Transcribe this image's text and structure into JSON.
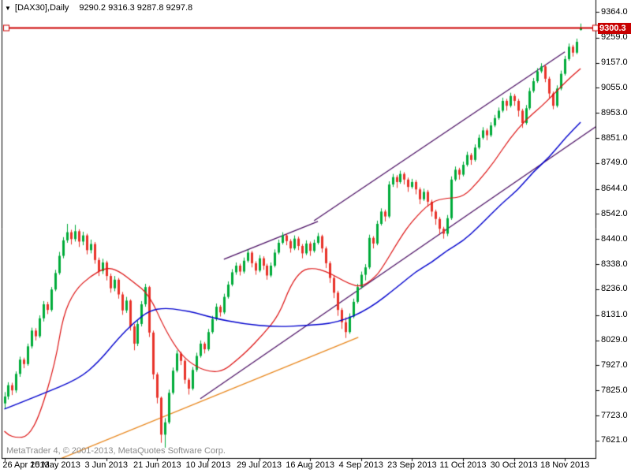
{
  "window": {
    "dropdown_glyph": "▼",
    "title_symbol": "[DAX30],Daily",
    "title_ohlc": "9290.2 9316.3 9287.8 9297.8"
  },
  "watermark": "MetaTrader 4, © 2001-2013, MetaQuotes Software Corp.",
  "colors": {
    "background": "#ffffff",
    "border": "#000000",
    "bull": "#00ab3a",
    "bear": "#e8332a",
    "ma_fast": "#dc1010",
    "ma_slow": "#0000cd",
    "channel": "#4a0e63",
    "trendline_orange": "#e8871e",
    "hline": "#cc0000",
    "price_tag_bg": "#c80000",
    "price_tag_text": "#ffffff",
    "watermark_text": "#8a8a8a"
  },
  "chart_data": {
    "type": "candlestick-ohlc",
    "symbol": "DAX30",
    "timeframe": "Daily",
    "last_quote": {
      "open": 9290.2,
      "high": 9316.3,
      "low": 9287.8,
      "close": 9297.8
    },
    "horizontal_line_price": 9300.3,
    "current_price_label": "9300.3",
    "price_axis_ticks": [
      "9364.0",
      "9259.0",
      "9157.0",
      "9055.0",
      "8953.0",
      "8851.0",
      "8749.0",
      "8644.0",
      "8542.0",
      "8440.0",
      "8338.0",
      "8236.0",
      "8131.0",
      "8029.0",
      "7927.0",
      "7825.0",
      "7723.0",
      "7621.0"
    ],
    "price_axis_values": [
      9364.0,
      9259.0,
      9157.0,
      9055.0,
      8953.0,
      8851.0,
      8749.0,
      8644.0,
      8542.0,
      8440.0,
      8338.0,
      8236.0,
      8131.0,
      8029.0,
      7927.0,
      7825.0,
      7723.0,
      7621.0
    ],
    "x_labels": [
      {
        "i": 0,
        "label": "26 Apr 2013"
      },
      {
        "i": 13,
        "label": "15 May 2013"
      },
      {
        "i": 26,
        "label": "3 Jun 2013"
      },
      {
        "i": 39,
        "label": "21 Jun 2013"
      },
      {
        "i": 52,
        "label": "10 Jul 2013"
      },
      {
        "i": 65,
        "label": "29 Jul 2013"
      },
      {
        "i": 78,
        "label": "16 Aug 2013"
      },
      {
        "i": 91,
        "label": "4 Sep 2013"
      },
      {
        "i": 104,
        "label": "23 Sep 2013"
      },
      {
        "i": 117,
        "label": "11 Oct 2013"
      },
      {
        "i": 130,
        "label": "30 Oct 2013"
      },
      {
        "i": 143,
        "label": "18 Nov 2013"
      }
    ],
    "candles": [
      [
        7772,
        7818,
        7752,
        7800
      ],
      [
        7800,
        7858,
        7788,
        7846
      ],
      [
        7846,
        7856,
        7806,
        7825
      ],
      [
        7825,
        7902,
        7815,
        7892
      ],
      [
        7892,
        7962,
        7880,
        7950
      ],
      [
        7950,
        7958,
        7915,
        7932
      ],
      [
        7932,
        8015,
        7925,
        8004
      ],
      [
        8004,
        8080,
        7995,
        8068
      ],
      [
        8068,
        8078,
        8028,
        8045
      ],
      [
        8045,
        8130,
        8038,
        8118
      ],
      [
        8118,
        8188,
        8105,
        8175
      ],
      [
        8175,
        8185,
        8135,
        8152
      ],
      [
        8152,
        8245,
        8145,
        8235
      ],
      [
        8235,
        8315,
        8228,
        8302
      ],
      [
        8302,
        8388,
        8295,
        8372
      ],
      [
        8372,
        8448,
        8362,
        8435
      ],
      [
        8435,
        8502,
        8425,
        8468
      ],
      [
        8468,
        8478,
        8418,
        8440
      ],
      [
        8440,
        8498,
        8430,
        8472
      ],
      [
        8472,
        8480,
        8408,
        8430
      ],
      [
        8430,
        8470,
        8415,
        8455
      ],
      [
        8455,
        8462,
        8378,
        8395
      ],
      [
        8395,
        8438,
        8382,
        8420
      ],
      [
        8420,
        8428,
        8340,
        8355
      ],
      [
        8355,
        8365,
        8290,
        8310
      ],
      [
        8310,
        8360,
        8298,
        8345
      ],
      [
        8345,
        8352,
        8272,
        8290
      ],
      [
        8290,
        8300,
        8222,
        8240
      ],
      [
        8240,
        8290,
        8228,
        8275
      ],
      [
        8275,
        8282,
        8198,
        8215
      ],
      [
        8215,
        8225,
        8132,
        8150
      ],
      [
        8150,
        8205,
        8140,
        8190
      ],
      [
        8190,
        8195,
        8068,
        8085
      ],
      [
        8085,
        8095,
        7988,
        8015
      ],
      [
        8015,
        8108,
        8005,
        8095
      ],
      [
        8095,
        8188,
        8085,
        8175
      ],
      [
        8175,
        8258,
        8165,
        8245
      ],
      [
        8245,
        8250,
        8042,
        8060
      ],
      [
        8060,
        8068,
        7870,
        7890
      ],
      [
        7890,
        7898,
        7772,
        7795
      ],
      [
        7795,
        7800,
        7612,
        7645
      ],
      [
        7645,
        7712,
        7592,
        7695
      ],
      [
        7695,
        7828,
        7688,
        7815
      ],
      [
        7815,
        7918,
        7808,
        7905
      ],
      [
        7905,
        7988,
        7898,
        7975
      ],
      [
        7975,
        7982,
        7928,
        7945
      ],
      [
        7945,
        7952,
        7852,
        7868
      ],
      [
        7868,
        7875,
        7808,
        7832
      ],
      [
        7832,
        7920,
        7825,
        7908
      ],
      [
        7908,
        7978,
        7900,
        7965
      ],
      [
        7965,
        8028,
        7958,
        8015
      ],
      [
        8015,
        8022,
        7975,
        7992
      ],
      [
        7992,
        8075,
        7985,
        8062
      ],
      [
        8062,
        8128,
        8055,
        8115
      ],
      [
        8115,
        8178,
        8108,
        8165
      ],
      [
        8165,
        8172,
        8125,
        8142
      ],
      [
        8142,
        8218,
        8135,
        8205
      ],
      [
        8205,
        8268,
        8198,
        8255
      ],
      [
        8255,
        8318,
        8248,
        8305
      ],
      [
        8305,
        8345,
        8295,
        8332
      ],
      [
        8332,
        8340,
        8292,
        8308
      ],
      [
        8308,
        8365,
        8300,
        8352
      ],
      [
        8352,
        8398,
        8345,
        8385
      ],
      [
        8385,
        8392,
        8325,
        8342
      ],
      [
        8342,
        8350,
        8295,
        8312
      ],
      [
        8312,
        8375,
        8305,
        8362
      ],
      [
        8362,
        8370,
        8315,
        8332
      ],
      [
        8332,
        8340,
        8275,
        8292
      ],
      [
        8292,
        8345,
        8285,
        8332
      ],
      [
        8332,
        8398,
        8325,
        8385
      ],
      [
        8385,
        8438,
        8378,
        8425
      ],
      [
        8425,
        8468,
        8418,
        8455
      ],
      [
        8455,
        8462,
        8415,
        8432
      ],
      [
        8432,
        8440,
        8385,
        8402
      ],
      [
        8402,
        8455,
        8395,
        8442
      ],
      [
        8442,
        8450,
        8395,
        8412
      ],
      [
        8412,
        8420,
        8362,
        8382
      ],
      [
        8382,
        8435,
        8375,
        8422
      ],
      [
        8422,
        8430,
        8372,
        8392
      ],
      [
        8392,
        8438,
        8385,
        8425
      ],
      [
        8425,
        8465,
        8418,
        8452
      ],
      [
        8452,
        8458,
        8385,
        8402
      ],
      [
        8402,
        8410,
        8322,
        8342
      ],
      [
        8342,
        8350,
        8262,
        8282
      ],
      [
        8282,
        8290,
        8200,
        8222
      ],
      [
        8222,
        8230,
        8128,
        8152
      ],
      [
        8152,
        8160,
        8075,
        8102
      ],
      [
        8102,
        8122,
        8038,
        8062
      ],
      [
        8062,
        8138,
        8055,
        8125
      ],
      [
        8125,
        8198,
        8118,
        8185
      ],
      [
        8185,
        8258,
        8178,
        8245
      ],
      [
        8245,
        8308,
        8238,
        8295
      ],
      [
        8295,
        8338,
        8272,
        8325
      ],
      [
        8325,
        8458,
        8318,
        8445
      ],
      [
        8445,
        8452,
        8402,
        8422
      ],
      [
        8422,
        8515,
        8415,
        8502
      ],
      [
        8502,
        8565,
        8495,
        8552
      ],
      [
        8552,
        8560,
        8512,
        8532
      ],
      [
        8532,
        8675,
        8525,
        8662
      ],
      [
        8662,
        8705,
        8652,
        8692
      ],
      [
        8692,
        8700,
        8648,
        8672
      ],
      [
        8672,
        8718,
        8665,
        8705
      ],
      [
        8705,
        8712,
        8662,
        8682
      ],
      [
        8682,
        8690,
        8632,
        8652
      ],
      [
        8652,
        8685,
        8645,
        8672
      ],
      [
        8672,
        8680,
        8622,
        8642
      ],
      [
        8642,
        8650,
        8582,
        8602
      ],
      [
        8602,
        8645,
        8595,
        8632
      ],
      [
        8632,
        8640,
        8572,
        8592
      ],
      [
        8592,
        8600,
        8532,
        8552
      ],
      [
        8552,
        8560,
        8498,
        8522
      ],
      [
        8522,
        8530,
        8458,
        8482
      ],
      [
        8482,
        8490,
        8442,
        8462
      ],
      [
        8462,
        8538,
        8452,
        8525
      ],
      [
        8525,
        8695,
        8518,
        8682
      ],
      [
        8682,
        8735,
        8675,
        8722
      ],
      [
        8722,
        8730,
        8682,
        8702
      ],
      [
        8702,
        8755,
        8695,
        8742
      ],
      [
        8742,
        8795,
        8735,
        8782
      ],
      [
        8782,
        8790,
        8742,
        8762
      ],
      [
        8762,
        8825,
        8755,
        8812
      ],
      [
        8812,
        8865,
        8805,
        8852
      ],
      [
        8852,
        8895,
        8845,
        8882
      ],
      [
        8882,
        8890,
        8842,
        8862
      ],
      [
        8862,
        8915,
        8855,
        8902
      ],
      [
        8902,
        8945,
        8895,
        8932
      ],
      [
        8932,
        8975,
        8925,
        8962
      ],
      [
        8962,
        9015,
        8955,
        9002
      ],
      [
        9002,
        9010,
        8962,
        8982
      ],
      [
        8982,
        9035,
        8975,
        9022
      ],
      [
        9022,
        9030,
        8982,
        9002
      ],
      [
        9002,
        9010,
        8938,
        8962
      ],
      [
        8962,
        8970,
        8892,
        8912
      ],
      [
        8912,
        8985,
        8905,
        8972
      ],
      [
        8972,
        9055,
        8965,
        9042
      ],
      [
        9042,
        9095,
        9035,
        9082
      ],
      [
        9082,
        9135,
        9075,
        9122
      ],
      [
        9122,
        9155,
        9115,
        9142
      ],
      [
        9142,
        9150,
        9078,
        9092
      ],
      [
        9092,
        9100,
        9015,
        9032
      ],
      [
        9032,
        9040,
        8968,
        8982
      ],
      [
        8982,
        9065,
        8975,
        9052
      ],
      [
        9052,
        9125,
        9045,
        9112
      ],
      [
        9112,
        9185,
        9105,
        9172
      ],
      [
        9172,
        9235,
        9165,
        9222
      ],
      [
        9222,
        9230,
        9182,
        9198
      ],
      [
        9198,
        9255,
        9192,
        9242
      ],
      [
        9290.2,
        9316.3,
        9287.8,
        9297.8
      ]
    ],
    "overlays": {
      "ma_fast": {
        "name": "moving-average-fast",
        "points": [
          [
            0,
            7659
          ],
          [
            1,
            7643
          ],
          [
            3,
            7633
          ],
          [
            6,
            7636
          ],
          [
            9,
            7723
          ],
          [
            13,
            7938
          ],
          [
            15,
            8130
          ],
          [
            18,
            8232
          ],
          [
            22,
            8290
          ],
          [
            26,
            8325
          ],
          [
            29,
            8313
          ],
          [
            33,
            8265
          ],
          [
            37,
            8213
          ],
          [
            41,
            8072
          ],
          [
            45,
            7970
          ],
          [
            49,
            7919
          ],
          [
            53,
            7899
          ],
          [
            56,
            7906
          ],
          [
            59,
            7944
          ],
          [
            62,
            7986
          ],
          [
            66,
            8053
          ],
          [
            70,
            8130
          ],
          [
            73,
            8252
          ],
          [
            76,
            8316
          ],
          [
            79,
            8322
          ],
          [
            82,
            8309
          ],
          [
            85,
            8284
          ],
          [
            88,
            8258
          ],
          [
            91,
            8245
          ],
          [
            94,
            8277
          ],
          [
            96,
            8312
          ],
          [
            101,
            8445
          ],
          [
            104,
            8513
          ],
          [
            109,
            8594
          ],
          [
            113,
            8607
          ],
          [
            117,
            8610
          ],
          [
            121,
            8675
          ],
          [
            125,
            8755
          ],
          [
            129,
            8851
          ],
          [
            133,
            8925
          ],
          [
            137,
            8979
          ],
          [
            140,
            9027
          ],
          [
            144,
            9092
          ],
          [
            147,
            9133
          ]
        ]
      },
      "ma_slow": {
        "name": "moving-average-slow",
        "points": [
          [
            0,
            7749
          ],
          [
            9,
            7806
          ],
          [
            19,
            7872
          ],
          [
            24,
            7940
          ],
          [
            29,
            8035
          ],
          [
            33,
            8100
          ],
          [
            37,
            8150
          ],
          [
            41,
            8160
          ],
          [
            45,
            8152
          ],
          [
            49,
            8140
          ],
          [
            53,
            8120
          ],
          [
            61,
            8095
          ],
          [
            69,
            8083
          ],
          [
            77,
            8088
          ],
          [
            85,
            8100
          ],
          [
            93,
            8155
          ],
          [
            101,
            8255
          ],
          [
            105,
            8308
          ],
          [
            109,
            8345
          ],
          [
            113,
            8395
          ],
          [
            117,
            8432
          ],
          [
            121,
            8490
          ],
          [
            127,
            8587
          ],
          [
            131,
            8640
          ],
          [
            135,
            8715
          ],
          [
            139,
            8772
          ],
          [
            143,
            8850
          ],
          [
            147,
            8915
          ]
        ]
      },
      "channel_upper_steep": {
        "name": "upper-channel-trendline",
        "points": [
          [
            79,
            8515
          ],
          [
            143,
            9201
          ]
        ]
      },
      "channel_lower_steep": {
        "name": "lower-channel-trendline",
        "points": [
          [
            50,
            7791
          ],
          [
            151,
            8898
          ]
        ]
      },
      "channel_upper_shallow": {
        "name": "summer-upper-trendline",
        "points": [
          [
            56,
            8358
          ],
          [
            80,
            8512
          ]
        ]
      },
      "trendline_orange": {
        "name": "summer-support-trendline",
        "points": [
          [
            14.3,
            7547
          ],
          [
            90.3,
            8041
          ]
        ]
      }
    },
    "ylim": [
      7621.0,
      9364.0
    ],
    "grid": false,
    "legend": null
  }
}
